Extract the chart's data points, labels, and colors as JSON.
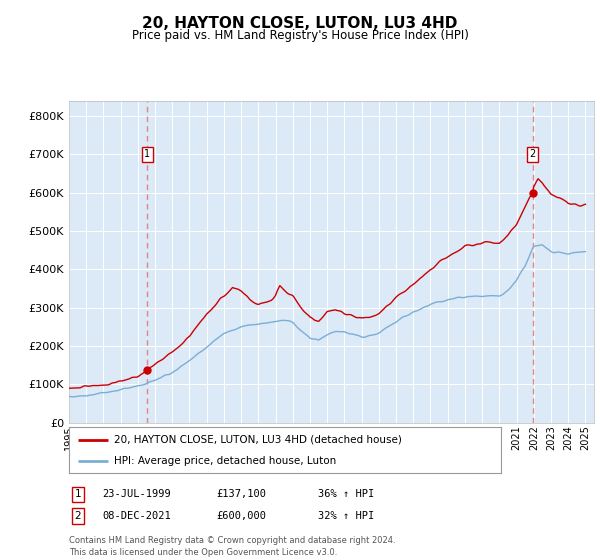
{
  "title": "20, HAYTON CLOSE, LUTON, LU3 4HD",
  "subtitle": "Price paid vs. HM Land Registry's House Price Index (HPI)",
  "plot_bg_color": "#dce9f7",
  "ylabel_values": [
    "£0",
    "£100K",
    "£200K",
    "£300K",
    "£400K",
    "£500K",
    "£600K",
    "£700K",
    "£800K"
  ],
  "ylim": [
    0,
    840000
  ],
  "xlim_start": 1995.0,
  "xlim_end": 2025.5,
  "red_line_color": "#cc0000",
  "blue_line_color": "#7aafd4",
  "dashed_vline_color": "#dd8888",
  "marker1_year": 1999.55,
  "marker1_value": 137100,
  "marker1_label": "1",
  "marker1_date": "23-JUL-1999",
  "marker1_price": "£137,100",
  "marker1_hpi": "36% ↑ HPI",
  "marker2_year": 2021.93,
  "marker2_value": 600000,
  "marker2_label": "2",
  "marker2_date": "08-DEC-2021",
  "marker2_price": "£600,000",
  "marker2_hpi": "32% ↑ HPI",
  "legend_line1": "20, HAYTON CLOSE, LUTON, LU3 4HD (detached house)",
  "legend_line2": "HPI: Average price, detached house, Luton",
  "footer": "Contains HM Land Registry data © Crown copyright and database right 2024.\nThis data is licensed under the Open Government Licence v3.0."
}
